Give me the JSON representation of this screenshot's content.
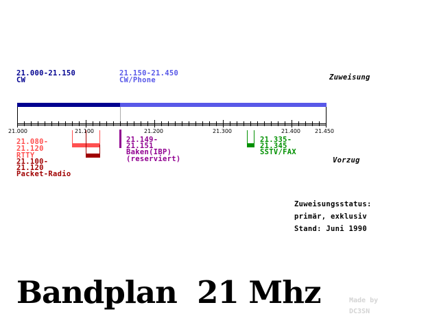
{
  "colors": {
    "cw": "#000090",
    "cw_phone": "#5858e8",
    "rtty": "#ff5050",
    "packet": "#a00000",
    "baken": "#900090",
    "sstv": "#009000",
    "credit": "#d4d4d4"
  },
  "header": {
    "cw_range": "21.000-21.150",
    "cw_label": "CW",
    "phone_range": "21.150-21.450",
    "phone_label": "CW/Phone",
    "zuweisung": "Zuweisung"
  },
  "axis": {
    "ticks": [
      "21.000",
      "21.100",
      "21.200",
      "21.300",
      "21.400",
      "21.450"
    ]
  },
  "segments": {
    "rtty_range_start": "21.080-",
    "rtty_range_end": "21.120",
    "rtty_label": "RTTY",
    "packet_range_start": "21.100-",
    "packet_range_end": "21.120",
    "packet_label": "Packet-Radio",
    "baken_range_start": "21.149-",
    "baken_range_end": "21.151",
    "baken_label": "Baken(IBP)",
    "baken_note": "(reserviert)",
    "sstv_range_start": "21.335-",
    "sstv_range_end": "21.345",
    "sstv_label": "SSTV/FAX",
    "vorzug": "Vorzug"
  },
  "status": {
    "line1": "Zuweisungsstatus:",
    "line2": "primär, exklusiv",
    "line3": "Stand: Juni 1990"
  },
  "title": "Bandplan  21 Mhz",
  "credit": {
    "line1": "Made by",
    "line2": "DC3SN"
  }
}
